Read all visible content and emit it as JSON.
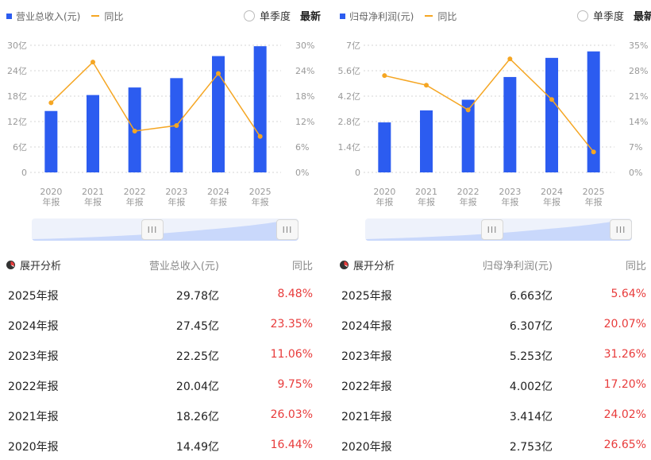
{
  "colors": {
    "bar": "#2c5cf0",
    "line": "#f5a623",
    "growth_text": "#e83b3b"
  },
  "controls": {
    "quarterly_label": "单季度",
    "latest_label": "最新",
    "expand_label": "展开分析",
    "slider_handle": "III"
  },
  "x_labels": [
    {
      "year": "2020",
      "suffix": "年报"
    },
    {
      "year": "2021",
      "suffix": "年报"
    },
    {
      "year": "2022",
      "suffix": "年报"
    },
    {
      "year": "2023",
      "suffix": "年报"
    },
    {
      "year": "2024",
      "suffix": "年报"
    },
    {
      "year": "2025",
      "suffix": "年报"
    }
  ],
  "chart_data": [
    {
      "type": "bar",
      "title": "",
      "categories": [
        "2020年报",
        "2021年报",
        "2022年报",
        "2023年报",
        "2024年报",
        "2025年报"
      ],
      "series": [
        {
          "name": "营业总收入(元)",
          "type": "bar",
          "axis": "left",
          "unit": "亿",
          "values": [
            14.49,
            18.26,
            20.04,
            22.25,
            27.45,
            29.78
          ]
        },
        {
          "name": "同比",
          "type": "line",
          "axis": "right",
          "unit": "%",
          "values": [
            16.44,
            26.03,
            9.75,
            11.06,
            23.35,
            8.48
          ]
        }
      ],
      "left_axis": {
        "ylim": [
          0,
          30
        ],
        "ticks": [
          "0",
          "6亿",
          "12亿",
          "18亿",
          "24亿",
          "30亿"
        ]
      },
      "right_axis": {
        "ylim": [
          0,
          30
        ],
        "ticks": [
          "0%",
          "6%",
          "12%",
          "18%",
          "24%",
          "30%"
        ]
      },
      "grid": true,
      "legend": "top-left"
    },
    {
      "type": "bar",
      "title": "",
      "categories": [
        "2020年报",
        "2021年报",
        "2022年报",
        "2023年报",
        "2024年报",
        "2025年报"
      ],
      "series": [
        {
          "name": "归母净利润(元)",
          "type": "bar",
          "axis": "left",
          "unit": "亿",
          "values": [
            2.753,
            3.414,
            4.002,
            5.253,
            6.307,
            6.663
          ]
        },
        {
          "name": "同比",
          "type": "line",
          "axis": "right",
          "unit": "%",
          "values": [
            26.65,
            24.02,
            17.2,
            31.26,
            20.07,
            5.64
          ]
        }
      ],
      "left_axis": {
        "ylim": [
          0,
          7
        ],
        "ticks": [
          "0",
          "1.4亿",
          "2.8亿",
          "4.2亿",
          "5.6亿",
          "7亿"
        ]
      },
      "right_axis": {
        "ylim": [
          0,
          35
        ],
        "ticks": [
          "0%",
          "7%",
          "14%",
          "21%",
          "28%",
          "35%"
        ]
      },
      "grid": true,
      "legend": "top-left"
    }
  ],
  "tables": [
    {
      "col_value": "营业总收入(元)",
      "col_growth": "同比",
      "rows": [
        {
          "period": "2025年报",
          "value": "29.78亿",
          "growth": "8.48%"
        },
        {
          "period": "2024年报",
          "value": "27.45亿",
          "growth": "23.35%"
        },
        {
          "period": "2023年报",
          "value": "22.25亿",
          "growth": "11.06%"
        },
        {
          "period": "2022年报",
          "value": "20.04亿",
          "growth": "9.75%"
        },
        {
          "period": "2021年报",
          "value": "18.26亿",
          "growth": "26.03%"
        },
        {
          "period": "2020年报",
          "value": "14.49亿",
          "growth": "16.44%"
        }
      ]
    },
    {
      "col_value": "归母净利润(元)",
      "col_growth": "同比",
      "rows": [
        {
          "period": "2025年报",
          "value": "6.663亿",
          "growth": "5.64%"
        },
        {
          "period": "2024年报",
          "value": "6.307亿",
          "growth": "20.07%"
        },
        {
          "period": "2023年报",
          "value": "5.253亿",
          "growth": "31.26%"
        },
        {
          "period": "2022年报",
          "value": "4.002亿",
          "growth": "17.20%"
        },
        {
          "period": "2021年报",
          "value": "3.414亿",
          "growth": "24.02%"
        },
        {
          "period": "2020年报",
          "value": "2.753亿",
          "growth": "26.65%"
        }
      ]
    }
  ]
}
